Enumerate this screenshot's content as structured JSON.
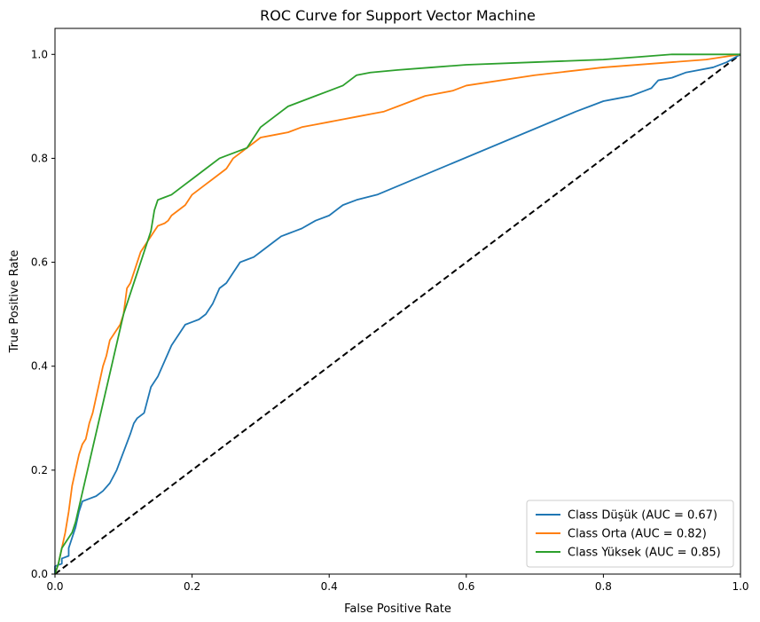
{
  "chart_data": {
    "type": "line",
    "title": "ROC Curve for Support Vector Machine",
    "xlabel": "False Positive Rate",
    "ylabel": "True Positive Rate",
    "xlim": [
      0.0,
      1.0
    ],
    "ylim": [
      0.0,
      1.05
    ],
    "xticks": [
      0.0,
      0.2,
      0.4,
      0.6,
      0.8,
      1.0
    ],
    "xtick_labels": [
      "0.0",
      "0.2",
      "0.4",
      "0.6",
      "0.8",
      "1.0"
    ],
    "yticks": [
      0.0,
      0.2,
      0.4,
      0.6,
      0.8,
      1.0
    ],
    "ytick_labels": [
      "0.0",
      "0.2",
      "0.4",
      "0.6",
      "0.8",
      "1.0"
    ],
    "grid": false,
    "legend_position": "lower-right",
    "series": [
      {
        "name": "Class Düşük (AUC = 0.67)",
        "color": "#1f77b4",
        "x": [
          0.0,
          0.0,
          0.01,
          0.01,
          0.02,
          0.02,
          0.025,
          0.03,
          0.035,
          0.04,
          0.05,
          0.06,
          0.07,
          0.08,
          0.09,
          0.1,
          0.11,
          0.115,
          0.12,
          0.13,
          0.14,
          0.145,
          0.15,
          0.16,
          0.17,
          0.18,
          0.19,
          0.2,
          0.21,
          0.22,
          0.23,
          0.24,
          0.25,
          0.26,
          0.27,
          0.28,
          0.29,
          0.3,
          0.31,
          0.32,
          0.33,
          0.34,
          0.35,
          0.36,
          0.38,
          0.4,
          0.42,
          0.44,
          0.47,
          0.76,
          0.78,
          0.8,
          0.82,
          0.84,
          0.86,
          0.87,
          0.88,
          0.9,
          0.92,
          0.94,
          0.96,
          0.98,
          1.0
        ],
        "y": [
          0.0,
          0.015,
          0.02,
          0.03,
          0.035,
          0.05,
          0.07,
          0.09,
          0.12,
          0.14,
          0.145,
          0.15,
          0.16,
          0.175,
          0.2,
          0.235,
          0.27,
          0.29,
          0.3,
          0.31,
          0.36,
          0.37,
          0.38,
          0.41,
          0.44,
          0.46,
          0.48,
          0.485,
          0.49,
          0.5,
          0.52,
          0.55,
          0.56,
          0.58,
          0.6,
          0.605,
          0.61,
          0.62,
          0.63,
          0.64,
          0.65,
          0.655,
          0.66,
          0.665,
          0.68,
          0.69,
          0.71,
          0.72,
          0.73,
          0.89,
          0.9,
          0.91,
          0.915,
          0.92,
          0.93,
          0.935,
          0.95,
          0.955,
          0.965,
          0.97,
          0.975,
          0.985,
          1.0
        ]
      },
      {
        "name": "Class Orta (AUC = 0.82)",
        "color": "#ff7f0e",
        "x": [
          0.0,
          0.005,
          0.01,
          0.015,
          0.02,
          0.025,
          0.03,
          0.035,
          0.04,
          0.045,
          0.05,
          0.055,
          0.06,
          0.065,
          0.07,
          0.075,
          0.08,
          0.085,
          0.09,
          0.095,
          0.1,
          0.105,
          0.11,
          0.115,
          0.12,
          0.125,
          0.13,
          0.135,
          0.14,
          0.145,
          0.15,
          0.16,
          0.165,
          0.17,
          0.18,
          0.19,
          0.2,
          0.21,
          0.22,
          0.23,
          0.24,
          0.25,
          0.26,
          0.27,
          0.28,
          0.29,
          0.3,
          0.32,
          0.34,
          0.36,
          0.38,
          0.4,
          0.42,
          0.44,
          0.46,
          0.48,
          0.5,
          0.52,
          0.54,
          0.58,
          0.6,
          0.7,
          0.8,
          0.9,
          0.95,
          1.0
        ],
        "y": [
          0.0,
          0.02,
          0.05,
          0.08,
          0.12,
          0.17,
          0.2,
          0.23,
          0.25,
          0.26,
          0.29,
          0.31,
          0.34,
          0.37,
          0.4,
          0.42,
          0.45,
          0.46,
          0.47,
          0.48,
          0.5,
          0.55,
          0.56,
          0.58,
          0.6,
          0.62,
          0.63,
          0.64,
          0.65,
          0.66,
          0.67,
          0.675,
          0.68,
          0.69,
          0.7,
          0.71,
          0.73,
          0.74,
          0.75,
          0.76,
          0.77,
          0.78,
          0.8,
          0.81,
          0.82,
          0.83,
          0.84,
          0.845,
          0.85,
          0.86,
          0.865,
          0.87,
          0.875,
          0.88,
          0.885,
          0.89,
          0.9,
          0.91,
          0.92,
          0.93,
          0.94,
          0.96,
          0.975,
          0.985,
          0.99,
          1.0
        ]
      },
      {
        "name": "Class Yüksek (AUC = 0.85)",
        "color": "#2ca02c",
        "x": [
          0.0,
          0.005,
          0.01,
          0.02,
          0.025,
          0.03,
          0.1,
          0.12,
          0.13,
          0.135,
          0.14,
          0.145,
          0.15,
          0.16,
          0.17,
          0.18,
          0.19,
          0.2,
          0.21,
          0.22,
          0.24,
          0.26,
          0.28,
          0.29,
          0.3,
          0.31,
          0.32,
          0.33,
          0.34,
          0.36,
          0.38,
          0.4,
          0.42,
          0.44,
          0.46,
          0.5,
          0.55,
          0.6,
          0.7,
          0.8,
          0.85,
          0.9,
          0.95,
          1.0
        ],
        "y": [
          0.0,
          0.02,
          0.05,
          0.07,
          0.08,
          0.1,
          0.5,
          0.58,
          0.62,
          0.64,
          0.66,
          0.7,
          0.72,
          0.725,
          0.73,
          0.74,
          0.75,
          0.76,
          0.77,
          0.78,
          0.8,
          0.81,
          0.82,
          0.84,
          0.86,
          0.87,
          0.88,
          0.89,
          0.9,
          0.91,
          0.92,
          0.93,
          0.94,
          0.96,
          0.965,
          0.97,
          0.975,
          0.98,
          0.985,
          0.99,
          0.995,
          1.0,
          1.0,
          1.0
        ]
      }
    ],
    "reference_line": {
      "x": [
        0.0,
        1.0
      ],
      "y": [
        0.0,
        1.0
      ],
      "color": "#000000",
      "style": "dashed"
    }
  }
}
